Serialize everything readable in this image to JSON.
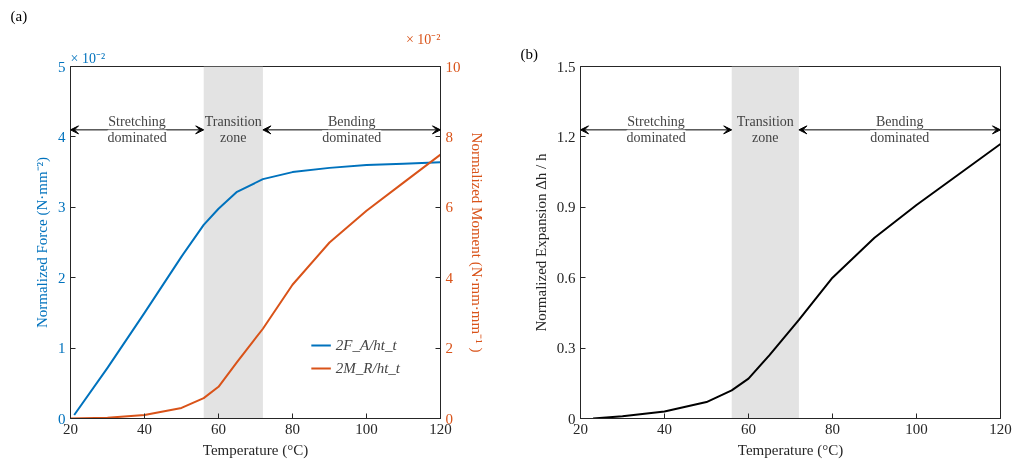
{
  "chart_data": [
    {
      "type": "line",
      "title": "(a)",
      "xlabel": "Temperature (°C)",
      "ylabel": "Normalized Force (N·mm⁻²)",
      "y2label": "Normalized Moment (N·mm·mm⁻¹ )",
      "xlim": [
        20,
        120
      ],
      "xticks": [
        20,
        40,
        60,
        80,
        100,
        120
      ],
      "ylim": [
        0,
        5
      ],
      "yticks": [
        0,
        1,
        2,
        3,
        4,
        5
      ],
      "y2lim": [
        0,
        10
      ],
      "y2ticks": [
        0,
        2,
        4,
        6,
        8,
        10
      ],
      "grid": false,
      "legend": "bottom right",
      "series": [
        {
          "name": "2F_A/ht_t",
          "color": "#0072bd",
          "x": [
            21,
            30,
            40,
            50,
            56,
            60,
            65,
            72,
            80,
            90,
            100,
            110,
            120
          ],
          "values": [
            0.05,
            0.72,
            1.5,
            2.3,
            2.75,
            2.98,
            3.22,
            3.4,
            3.5,
            3.56,
            3.6,
            3.62,
            3.64
          ]
        },
        {
          "name": "2M_R/ht_t",
          "color": "#d95319",
          "axis": "y2",
          "x": [
            20,
            30,
            40,
            50,
            56,
            60,
            65,
            72,
            80,
            90,
            100,
            110,
            120
          ],
          "values": [
            0,
            0.02,
            0.1,
            0.3,
            0.58,
            0.9,
            1.6,
            2.55,
            3.8,
            5.0,
            5.9,
            6.7,
            7.5
          ]
        }
      ],
      "bands": [
        {
          "axis": "x",
          "from": 56,
          "to": 72,
          "label": "Transition\nzone",
          "color": "#e3e3e3"
        }
      ],
      "annotations": [
        "× 10⁻²",
        "× 10⁻²",
        "Stretching\ndominated",
        "Bending\ndominated"
      ]
    },
    {
      "type": "line",
      "title": "(b)",
      "xlabel": "Temperature (°C)",
      "ylabel": "Normalized Expansion Δh / h",
      "xlim": [
        20,
        120
      ],
      "xticks": [
        20,
        40,
        60,
        80,
        100,
        120
      ],
      "ylim": [
        0,
        1.5
      ],
      "yticks": [
        0,
        0.3,
        0.6,
        0.9,
        1.2,
        1.5
      ],
      "grid": false,
      "series": [
        {
          "color": "#000000",
          "x": [
            23,
            30,
            40,
            50,
            56,
            60,
            65,
            72,
            80,
            90,
            100,
            110,
            120
          ],
          "values": [
            0,
            0.01,
            0.03,
            0.07,
            0.12,
            0.17,
            0.27,
            0.42,
            0.6,
            0.77,
            0.91,
            1.04,
            1.17
          ]
        }
      ],
      "bands": [
        {
          "axis": "x",
          "from": 56,
          "to": 72,
          "label": "Transition\nzone",
          "color": "#e3e3e3"
        }
      ],
      "annotations": [
        "Stretching\ndominated",
        "Bending\ndominated"
      ]
    }
  ]
}
